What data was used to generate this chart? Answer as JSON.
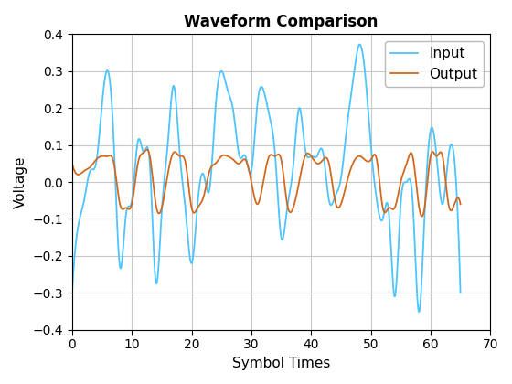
{
  "title": "Waveform Comparison",
  "xlabel": "Symbol Times",
  "ylabel": "Voltage",
  "xlim": [
    0,
    67
  ],
  "ylim": [
    -0.4,
    0.4
  ],
  "xticks": [
    0,
    10,
    20,
    30,
    40,
    50,
    60,
    70
  ],
  "yticks": [
    -0.4,
    -0.3,
    -0.2,
    -0.1,
    0.0,
    0.1,
    0.2,
    0.3,
    0.4
  ],
  "input_color": "#4DC3FF",
  "output_color": "#D2691E",
  "legend_labels": [
    "Input",
    "Output"
  ],
  "title_fontsize": 12,
  "axis_fontsize": 11,
  "tick_fontsize": 10,
  "linewidth_input": 1.3,
  "linewidth_output": 1.3,
  "background_color": "#ffffff",
  "grid_color": "#c8c8c8",
  "input_keypoints_x": [
    0,
    1,
    2,
    3,
    4,
    5,
    6,
    7,
    8,
    9,
    10,
    11,
    12,
    13,
    14,
    15,
    16,
    17,
    18,
    19,
    20,
    21,
    22,
    23,
    24,
    25,
    26,
    27,
    28,
    29,
    30,
    31,
    32,
    33,
    34,
    35,
    36,
    37,
    38,
    39,
    40,
    41,
    42,
    43,
    44,
    45,
    46,
    47,
    48,
    49,
    50,
    51,
    52,
    53,
    54,
    55,
    56,
    57,
    58,
    59,
    60,
    61,
    62,
    63,
    64,
    65
  ],
  "input_keypoints_y": [
    -0.3,
    -0.12,
    -0.05,
    0.03,
    0.05,
    0.21,
    0.3,
    0.1,
    -0.23,
    -0.09,
    -0.05,
    0.11,
    0.08,
    0.05,
    -0.27,
    -0.08,
    0.1,
    0.26,
    0.08,
    -0.08,
    -0.22,
    -0.06,
    0.02,
    -0.02,
    0.2,
    0.3,
    0.25,
    0.19,
    0.07,
    0.07,
    0.03,
    0.21,
    0.25,
    0.18,
    0.07,
    -0.15,
    -0.07,
    0.04,
    0.2,
    0.09,
    0.07,
    0.07,
    0.08,
    -0.05,
    -0.04,
    0.01,
    0.15,
    0.27,
    0.37,
    0.3,
    0.1,
    -0.05,
    -0.1,
    -0.08,
    -0.31,
    -0.06,
    0.0,
    -0.05,
    -0.35,
    -0.09,
    0.14,
    0.07,
    -0.06,
    0.07,
    0.06,
    -0.3
  ],
  "output_keypoints_x": [
    0,
    1,
    2,
    3,
    4,
    5,
    6,
    7,
    8,
    9,
    10,
    11,
    12,
    13,
    14,
    15,
    16,
    17,
    18,
    19,
    20,
    21,
    22,
    23,
    24,
    25,
    26,
    27,
    28,
    29,
    30,
    31,
    32,
    33,
    34,
    35,
    36,
    37,
    38,
    39,
    40,
    41,
    42,
    43,
    44,
    45,
    46,
    47,
    48,
    49,
    50,
    51,
    52,
    53,
    54,
    55,
    56,
    57,
    58,
    59,
    60,
    61,
    62,
    63,
    64,
    65
  ],
  "output_keypoints_y": [
    0.05,
    0.02,
    0.03,
    0.04,
    0.06,
    0.07,
    0.07,
    0.05,
    -0.06,
    -0.07,
    -0.06,
    0.05,
    0.08,
    0.07,
    -0.06,
    -0.07,
    0.02,
    0.08,
    0.07,
    0.05,
    -0.07,
    -0.07,
    -0.04,
    0.03,
    0.05,
    0.07,
    0.07,
    0.06,
    0.05,
    0.06,
    0.0,
    -0.06,
    0.0,
    0.07,
    0.07,
    0.06,
    -0.06,
    -0.07,
    0.0,
    0.07,
    0.07,
    0.05,
    0.06,
    0.05,
    -0.05,
    -0.06,
    0.0,
    0.05,
    0.07,
    0.06,
    0.06,
    0.06,
    -0.07,
    -0.07,
    -0.07,
    0.0,
    0.05,
    0.07,
    -0.06,
    -0.07,
    0.07,
    0.07,
    0.07,
    -0.06,
    -0.06,
    -0.06
  ]
}
